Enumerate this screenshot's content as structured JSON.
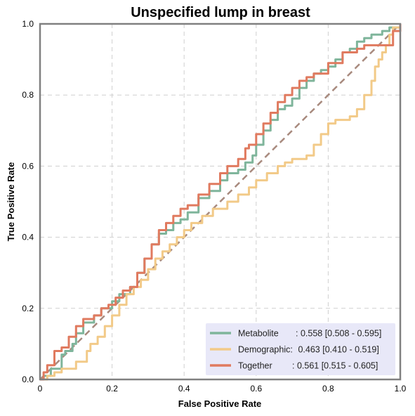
{
  "chart_data": {
    "type": "line",
    "title": "Unspecified lump in breast",
    "xlabel": "False Positive Rate",
    "ylabel": "True Positive Rate",
    "xlim": [
      0,
      1
    ],
    "ylim": [
      0,
      1
    ],
    "xticks": [
      "0",
      "0.2",
      "0.4",
      "0.6",
      "0.8",
      "1.0"
    ],
    "yticks": [
      "0.0",
      "0.2",
      "0.4",
      "0.6",
      "0.8",
      "1.0"
    ],
    "grid": true,
    "legend_position": "bottom-right",
    "legend_background": "#e8e8f8",
    "chance_line": {
      "x": [
        0,
        1
      ],
      "y": [
        0,
        1
      ],
      "color": "#a88a7e",
      "style": "dashed"
    },
    "series": [
      {
        "name": "Metabolite",
        "auc_label": ": 0.558 [0.508 - 0.595]",
        "color": "#7fb59b",
        "x": [
          0.0,
          0.01,
          0.03,
          0.06,
          0.07,
          0.09,
          0.1,
          0.12,
          0.15,
          0.17,
          0.19,
          0.2,
          0.22,
          0.25,
          0.27,
          0.29,
          0.31,
          0.33,
          0.35,
          0.37,
          0.39,
          0.41,
          0.44,
          0.47,
          0.5,
          0.52,
          0.55,
          0.57,
          0.59,
          0.6,
          0.62,
          0.64,
          0.66,
          0.68,
          0.7,
          0.72,
          0.74,
          0.76,
          0.78,
          0.8,
          0.82,
          0.84,
          0.86,
          0.88,
          0.9,
          0.92,
          0.95,
          0.97,
          1.0
        ],
        "y": [
          0.0,
          0.01,
          0.03,
          0.07,
          0.08,
          0.1,
          0.13,
          0.16,
          0.18,
          0.2,
          0.2,
          0.22,
          0.24,
          0.26,
          0.3,
          0.34,
          0.38,
          0.41,
          0.42,
          0.44,
          0.45,
          0.47,
          0.51,
          0.53,
          0.56,
          0.58,
          0.59,
          0.61,
          0.63,
          0.66,
          0.7,
          0.73,
          0.76,
          0.77,
          0.79,
          0.82,
          0.84,
          0.86,
          0.87,
          0.88,
          0.9,
          0.92,
          0.93,
          0.95,
          0.96,
          0.97,
          0.98,
          0.99,
          1.0
        ]
      },
      {
        "name": "Demographic:",
        "auc_label": " 0.463 [0.410 - 0.519]",
        "color": "#f2ca88",
        "x": [
          0.0,
          0.02,
          0.04,
          0.06,
          0.08,
          0.1,
          0.12,
          0.13,
          0.14,
          0.16,
          0.18,
          0.2,
          0.22,
          0.24,
          0.26,
          0.28,
          0.3,
          0.32,
          0.34,
          0.36,
          0.38,
          0.4,
          0.42,
          0.45,
          0.48,
          0.52,
          0.55,
          0.58,
          0.6,
          0.63,
          0.66,
          0.68,
          0.7,
          0.72,
          0.74,
          0.76,
          0.78,
          0.8,
          0.82,
          0.84,
          0.86,
          0.88,
          0.9,
          0.92,
          0.93,
          0.94,
          0.95,
          0.96,
          0.97,
          0.98,
          1.0
        ],
        "y": [
          0.0,
          0.01,
          0.02,
          0.03,
          0.03,
          0.05,
          0.05,
          0.08,
          0.1,
          0.12,
          0.15,
          0.18,
          0.21,
          0.24,
          0.26,
          0.28,
          0.31,
          0.34,
          0.36,
          0.38,
          0.4,
          0.42,
          0.44,
          0.46,
          0.48,
          0.5,
          0.52,
          0.54,
          0.56,
          0.58,
          0.6,
          0.61,
          0.62,
          0.62,
          0.63,
          0.66,
          0.69,
          0.72,
          0.73,
          0.73,
          0.74,
          0.76,
          0.8,
          0.84,
          0.88,
          0.9,
          0.92,
          0.94,
          0.97,
          0.99,
          1.0
        ]
      },
      {
        "name": "Together",
        "auc_label": ": 0.561 [0.515 - 0.605]",
        "color": "#e07a5f",
        "x": [
          0.0,
          0.01,
          0.02,
          0.04,
          0.06,
          0.08,
          0.1,
          0.12,
          0.15,
          0.17,
          0.19,
          0.21,
          0.23,
          0.25,
          0.27,
          0.29,
          0.31,
          0.33,
          0.35,
          0.37,
          0.39,
          0.41,
          0.44,
          0.47,
          0.5,
          0.52,
          0.55,
          0.57,
          0.58,
          0.6,
          0.62,
          0.64,
          0.66,
          0.68,
          0.7,
          0.72,
          0.74,
          0.76,
          0.8,
          0.84,
          0.88,
          0.9,
          0.92,
          0.94,
          0.96,
          0.98,
          1.0
        ],
        "y": [
          0.0,
          0.02,
          0.04,
          0.08,
          0.09,
          0.12,
          0.15,
          0.17,
          0.18,
          0.2,
          0.21,
          0.23,
          0.25,
          0.26,
          0.3,
          0.34,
          0.38,
          0.42,
          0.44,
          0.46,
          0.48,
          0.49,
          0.52,
          0.55,
          0.58,
          0.6,
          0.62,
          0.65,
          0.66,
          0.69,
          0.72,
          0.75,
          0.78,
          0.8,
          0.82,
          0.84,
          0.85,
          0.86,
          0.89,
          0.92,
          0.93,
          0.94,
          0.94,
          0.94,
          0.94,
          0.98,
          1.0
        ]
      }
    ]
  }
}
